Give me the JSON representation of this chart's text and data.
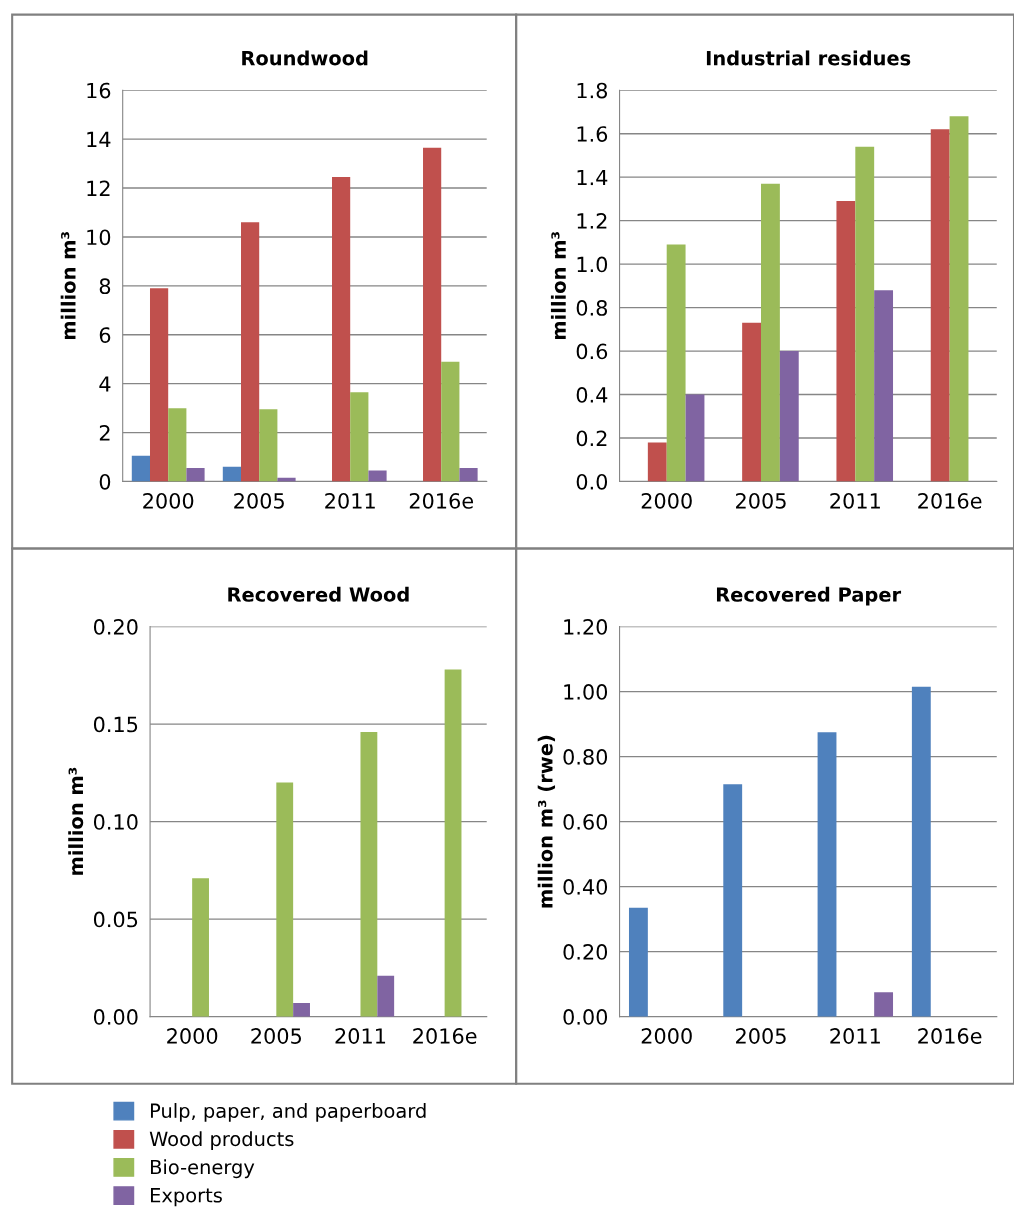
{
  "chart_data": [
    {
      "type": "bar",
      "title": "Roundwood",
      "ylabel": "million m³",
      "categories": [
        "2000",
        "2005",
        "2011",
        "2016e"
      ],
      "ylim": [
        0,
        16
      ],
      "yticks": [
        0,
        2,
        4,
        6,
        8,
        10,
        12,
        14,
        16
      ],
      "grid": "y",
      "series": [
        {
          "color": "#4f81bd",
          "values": [
            1.05,
            0.6,
            null,
            null
          ]
        },
        {
          "color": "#c0504d",
          "values": [
            7.9,
            10.6,
            12.45,
            13.65
          ]
        },
        {
          "color": "#9bbb59",
          "values": [
            3.0,
            2.95,
            3.65,
            4.9
          ]
        },
        {
          "color": "#8064a2",
          "values": [
            0.55,
            0.15,
            0.45,
            0.55
          ]
        }
      ]
    },
    {
      "type": "bar",
      "title": "Industrial residues",
      "ylabel": "million m³",
      "categories": [
        "2000",
        "2005",
        "2011",
        "2016e"
      ],
      "ylim": [
        0,
        1.8
      ],
      "yticks": [
        {
          "value": 0,
          "label": "0.0"
        },
        {
          "value": 0.2,
          "label": "0.2"
        },
        {
          "value": 0.4,
          "label": "0.4"
        },
        {
          "value": 0.6,
          "label": "0.6"
        },
        {
          "value": 0.8,
          "label": "0.8"
        },
        {
          "value": 1.0,
          "label": "1.0"
        },
        {
          "value": 1.2,
          "label": "1.2"
        },
        {
          "value": 1.4,
          "label": "1.4"
        },
        {
          "value": 1.6,
          "label": "1.6"
        },
        {
          "value": 1.8,
          "label": "1.8"
        }
      ],
      "grid": "y",
      "series": [
        {
          "color": "#4f81bd",
          "values": [
            null,
            null,
            null,
            null
          ]
        },
        {
          "color": "#c0504d",
          "values": [
            0.18,
            0.73,
            1.29,
            1.62
          ]
        },
        {
          "color": "#9bbb59",
          "values": [
            1.09,
            1.37,
            1.54,
            1.68
          ]
        },
        {
          "color": "#8064a2",
          "values": [
            0.4,
            0.6,
            0.88,
            null
          ]
        }
      ]
    },
    {
      "type": "bar",
      "title": "Recovered Wood",
      "ylabel": "million m³",
      "categories": [
        "2000",
        "2005",
        "2011",
        "2016e"
      ],
      "ylim": [
        0,
        0.2
      ],
      "yticks": [
        {
          "value": 0,
          "label": "0.00"
        },
        {
          "value": 0.05,
          "label": "0.05"
        },
        {
          "value": 0.1,
          "label": "0.10"
        },
        {
          "value": 0.15,
          "label": "0.15"
        },
        {
          "value": 0.2,
          "label": "0.20"
        }
      ],
      "grid": "y",
      "legend": "bottom",
      "series": [
        {
          "name": "Pulp, paper, and paperboard",
          "color": "#4f81bd",
          "values": [
            null,
            null,
            null,
            null
          ]
        },
        {
          "name": "Wood products",
          "color": "#c0504d",
          "values": [
            null,
            null,
            null,
            null
          ]
        },
        {
          "name": "Bio-energy",
          "color": "#9bbb59",
          "values": [
            0.071,
            0.12,
            0.146,
            0.178
          ]
        },
        {
          "name": "Exports",
          "color": "#8064a2",
          "values": [
            null,
            0.007,
            0.021,
            null
          ]
        }
      ]
    },
    {
      "type": "bar",
      "title": "Recovered Paper",
      "ylabel": "million m³ (rwe)",
      "categories": [
        "2000",
        "2005",
        "2011",
        "2016e"
      ],
      "ylim": [
        0,
        1.2
      ],
      "yticks": [
        {
          "value": 0,
          "label": "0.00"
        },
        {
          "value": 0.2,
          "label": "0.20"
        },
        {
          "value": 0.4,
          "label": "0.40"
        },
        {
          "value": 0.6,
          "label": "0.60"
        },
        {
          "value": 0.8,
          "label": "0.80"
        },
        {
          "value": 1.0,
          "label": "1.00"
        },
        {
          "value": 1.2,
          "label": "1.20"
        }
      ],
      "grid": "y",
      "series": [
        {
          "color": "#4f81bd",
          "values": [
            0.335,
            0.715,
            0.875,
            1.015
          ]
        },
        {
          "color": "#c0504d",
          "values": [
            null,
            null,
            null,
            null
          ]
        },
        {
          "color": "#9bbb59",
          "values": [
            null,
            null,
            null,
            null
          ]
        },
        {
          "color": "#8064a2",
          "values": [
            null,
            null,
            0.075,
            null
          ]
        }
      ]
    }
  ]
}
